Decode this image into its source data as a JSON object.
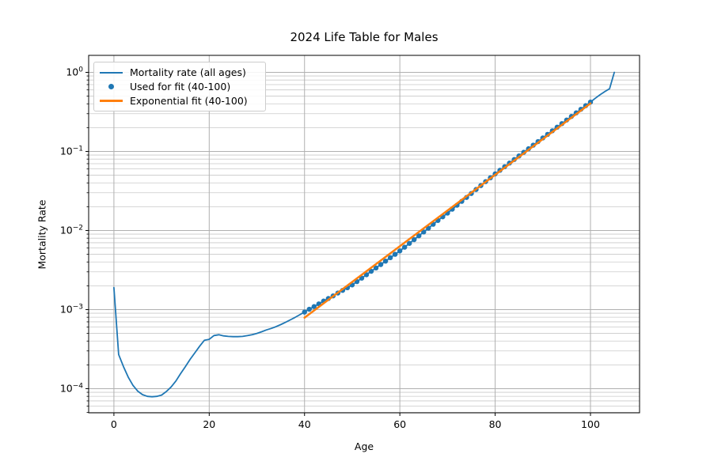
{
  "chart_data": {
    "type": "line",
    "title": "2024 Life Table for Males",
    "xlabel": "Age",
    "ylabel": "Mortality Rate",
    "yscale": "log",
    "xlim": [
      -5.3,
      110.3
    ],
    "ylim": [
      4.95e-05,
      1.64
    ],
    "x_ticks": [
      0,
      20,
      40,
      60,
      80,
      100
    ],
    "y_ticks": [
      {
        "value": 1,
        "label": "10⁰",
        "exp": "0"
      },
      {
        "value": 0.1,
        "label": "10⁻¹",
        "exp": "−1"
      },
      {
        "value": 0.01,
        "label": "10⁻²",
        "exp": "−2"
      },
      {
        "value": 0.001,
        "label": "10⁻³",
        "exp": "−3"
      },
      {
        "value": 0.0001,
        "label": "10⁻⁴",
        "exp": "−4"
      }
    ],
    "grid": {
      "major": true,
      "minor_y": true
    },
    "legend_position": "upper-left",
    "series": [
      {
        "name": "Mortality rate (all ages)",
        "type": "line",
        "color": "#1f77b4",
        "lw": 1.8,
        "x": [
          0,
          1,
          2,
          3,
          4,
          5,
          6,
          7,
          8,
          9,
          10,
          11,
          12,
          13,
          14,
          15,
          16,
          17,
          18,
          19,
          20,
          21,
          22,
          23,
          24,
          25,
          26,
          27,
          28,
          29,
          30,
          31,
          32,
          33,
          34,
          35,
          36,
          37,
          38,
          39,
          40,
          41,
          42,
          43,
          44,
          45,
          46,
          47,
          48,
          49,
          50,
          51,
          52,
          53,
          54,
          55,
          56,
          57,
          58,
          59,
          60,
          61,
          62,
          63,
          64,
          65,
          66,
          67,
          68,
          69,
          70,
          71,
          72,
          73,
          74,
          75,
          76,
          77,
          78,
          79,
          80,
          81,
          82,
          83,
          84,
          85,
          86,
          87,
          88,
          89,
          90,
          91,
          92,
          93,
          94,
          95,
          96,
          97,
          98,
          99,
          100,
          101,
          102,
          103,
          104,
          105
        ],
        "y": [
          0.0019,
          0.00027,
          0.00019,
          0.00014,
          0.00011,
          9.3e-05,
          8.4e-05,
          8e-05,
          7.9e-05,
          8e-05,
          8.3e-05,
          9.2e-05,
          0.000105,
          0.000125,
          0.000155,
          0.00019,
          0.000235,
          0.000285,
          0.000345,
          0.00041,
          0.00042,
          0.00047,
          0.00048,
          0.000465,
          0.000458,
          0.000455,
          0.000455,
          0.000458,
          0.000468,
          0.000482,
          0.0005,
          0.000525,
          0.000553,
          0.000578,
          0.000608,
          0.000645,
          0.00069,
          0.00074,
          0.000795,
          0.00086,
          0.00093,
          0.00101,
          0.00109,
          0.00118,
          0.00128,
          0.00138,
          0.00149,
          0.00162,
          0.00175,
          0.00189,
          0.00205,
          0.00226,
          0.0025,
          0.00276,
          0.00305,
          0.00336,
          0.00371,
          0.0041,
          0.00453,
          0.005,
          0.00552,
          0.00615,
          0.00687,
          0.00767,
          0.00857,
          0.00958,
          0.0107,
          0.012,
          0.0134,
          0.0149,
          0.0166,
          0.0186,
          0.0209,
          0.0234,
          0.0262,
          0.0294,
          0.033,
          0.037,
          0.0415,
          0.0464,
          0.052,
          0.0577,
          0.0641,
          0.0712,
          0.079,
          0.0877,
          0.0974,
          0.1081,
          0.12,
          0.1332,
          0.1479,
          0.1642,
          0.1823,
          0.2024,
          0.2247,
          0.2494,
          0.2769,
          0.3074,
          0.3413,
          0.3789,
          0.4206,
          0.47,
          0.52,
          0.57,
          0.62,
          1.0
        ]
      },
      {
        "name": "Used for fit (40-100)",
        "type": "scatter",
        "color": "#1f77b4",
        "marker_radius": 3.2,
        "x": [
          40,
          41,
          42,
          43,
          44,
          45,
          46,
          47,
          48,
          49,
          50,
          51,
          52,
          53,
          54,
          55,
          56,
          57,
          58,
          59,
          60,
          61,
          62,
          63,
          64,
          65,
          66,
          67,
          68,
          69,
          70,
          71,
          72,
          73,
          74,
          75,
          76,
          77,
          78,
          79,
          80,
          81,
          82,
          83,
          84,
          85,
          86,
          87,
          88,
          89,
          90,
          91,
          92,
          93,
          94,
          95,
          96,
          97,
          98,
          99,
          100
        ],
        "y": [
          0.00093,
          0.00101,
          0.00109,
          0.00118,
          0.00128,
          0.00138,
          0.00149,
          0.00162,
          0.00175,
          0.00189,
          0.00205,
          0.00226,
          0.0025,
          0.00276,
          0.00305,
          0.00336,
          0.00371,
          0.0041,
          0.00453,
          0.005,
          0.00552,
          0.00615,
          0.00687,
          0.00767,
          0.00857,
          0.00958,
          0.0107,
          0.012,
          0.0134,
          0.0149,
          0.0166,
          0.0186,
          0.0209,
          0.0234,
          0.0262,
          0.0294,
          0.033,
          0.037,
          0.0415,
          0.0464,
          0.052,
          0.0577,
          0.0641,
          0.0712,
          0.079,
          0.0877,
          0.0974,
          0.1081,
          0.12,
          0.1332,
          0.1479,
          0.1642,
          0.1823,
          0.2024,
          0.2247,
          0.2494,
          0.2769,
          0.3074,
          0.3413,
          0.3789,
          0.4206
        ]
      },
      {
        "name": "Exponential fit (40-100)",
        "type": "line",
        "color": "#ff7f0e",
        "lw": 2.5,
        "x": [
          40,
          100
        ],
        "y": [
          0.00079,
          0.405
        ]
      }
    ]
  },
  "colors": {
    "blue": "#1f77b4",
    "orange": "#ff7f0e",
    "grid_major": "#b0b0b0",
    "grid_minor": "#c9c9c9",
    "spine": "#000000"
  }
}
